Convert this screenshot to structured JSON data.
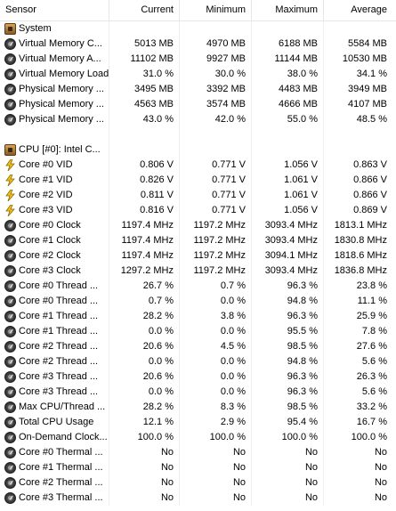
{
  "columns": {
    "sensor": "Sensor",
    "current": "Current",
    "minimum": "Minimum",
    "maximum": "Maximum",
    "average": "Average"
  },
  "system": {
    "group": "System",
    "rows": [
      {
        "name": "Virtual Memory C...",
        "icon": "gauge-icon",
        "cur": "5013 MB",
        "min": "4970 MB",
        "max": "6188 MB",
        "avg": "5584 MB"
      },
      {
        "name": "Virtual Memory A...",
        "icon": "gauge-icon",
        "cur": "11102 MB",
        "min": "9927 MB",
        "max": "11144 MB",
        "avg": "10530 MB"
      },
      {
        "name": "Virtual Memory Load",
        "icon": "gauge-icon",
        "cur": "31.0 %",
        "min": "30.0 %",
        "max": "38.0 %",
        "avg": "34.1 %"
      },
      {
        "name": "Physical Memory ...",
        "icon": "gauge-icon",
        "cur": "3495 MB",
        "min": "3392 MB",
        "max": "4483 MB",
        "avg": "3949 MB"
      },
      {
        "name": "Physical Memory ...",
        "icon": "gauge-icon",
        "cur": "4563 MB",
        "min": "3574 MB",
        "max": "4666 MB",
        "avg": "4107 MB"
      },
      {
        "name": "Physical Memory ...",
        "icon": "gauge-icon",
        "cur": "43.0 %",
        "min": "42.0 %",
        "max": "55.0 %",
        "avg": "48.5 %"
      }
    ]
  },
  "cpu": {
    "group": "CPU [#0]: Intel C...",
    "rows": [
      {
        "name": "Core #0 VID",
        "icon": "bolt-icon",
        "cur": "0.806 V",
        "min": "0.771 V",
        "max": "1.056 V",
        "avg": "0.863 V"
      },
      {
        "name": "Core #1 VID",
        "icon": "bolt-icon",
        "cur": "0.826 V",
        "min": "0.771 V",
        "max": "1.061 V",
        "avg": "0.866 V"
      },
      {
        "name": "Core #2 VID",
        "icon": "bolt-icon",
        "cur": "0.811 V",
        "min": "0.771 V",
        "max": "1.061 V",
        "avg": "0.866 V"
      },
      {
        "name": "Core #3 VID",
        "icon": "bolt-icon",
        "cur": "0.816 V",
        "min": "0.771 V",
        "max": "1.056 V",
        "avg": "0.869 V"
      },
      {
        "name": "Core #0 Clock",
        "icon": "gauge-icon",
        "cur": "1197.4 MHz",
        "min": "1197.2 MHz",
        "max": "3093.4 MHz",
        "avg": "1813.1 MHz"
      },
      {
        "name": "Core #1 Clock",
        "icon": "gauge-icon",
        "cur": "1197.4 MHz",
        "min": "1197.2 MHz",
        "max": "3093.4 MHz",
        "avg": "1830.8 MHz"
      },
      {
        "name": "Core #2 Clock",
        "icon": "gauge-icon",
        "cur": "1197.4 MHz",
        "min": "1197.2 MHz",
        "max": "3094.1 MHz",
        "avg": "1818.6 MHz"
      },
      {
        "name": "Core #3 Clock",
        "icon": "gauge-icon",
        "cur": "1297.2 MHz",
        "min": "1197.2 MHz",
        "max": "3093.4 MHz",
        "avg": "1836.8 MHz"
      },
      {
        "name": "Core #0 Thread ...",
        "icon": "gauge-icon",
        "cur": "26.7 %",
        "min": "0.7 %",
        "max": "96.3 %",
        "avg": "23.8 %"
      },
      {
        "name": "Core #0 Thread ...",
        "icon": "gauge-icon",
        "cur": "0.7 %",
        "min": "0.0 %",
        "max": "94.8 %",
        "avg": "11.1 %"
      },
      {
        "name": "Core #1 Thread ...",
        "icon": "gauge-icon",
        "cur": "28.2 %",
        "min": "3.8 %",
        "max": "96.3 %",
        "avg": "25.9 %"
      },
      {
        "name": "Core #1 Thread ...",
        "icon": "gauge-icon",
        "cur": "0.0 %",
        "min": "0.0 %",
        "max": "95.5 %",
        "avg": "7.8 %"
      },
      {
        "name": "Core #2 Thread ...",
        "icon": "gauge-icon",
        "cur": "20.6 %",
        "min": "4.5 %",
        "max": "98.5 %",
        "avg": "27.6 %"
      },
      {
        "name": "Core #2 Thread ...",
        "icon": "gauge-icon",
        "cur": "0.0 %",
        "min": "0.0 %",
        "max": "94.8 %",
        "avg": "5.6 %"
      },
      {
        "name": "Core #3 Thread ...",
        "icon": "gauge-icon",
        "cur": "20.6 %",
        "min": "0.0 %",
        "max": "96.3 %",
        "avg": "26.3 %"
      },
      {
        "name": "Core #3 Thread ...",
        "icon": "gauge-icon",
        "cur": "0.0 %",
        "min": "0.0 %",
        "max": "96.3 %",
        "avg": "5.6 %"
      },
      {
        "name": "Max CPU/Thread ...",
        "icon": "gauge-icon",
        "cur": "28.2 %",
        "min": "8.3 %",
        "max": "98.5 %",
        "avg": "33.2 %"
      },
      {
        "name": "Total CPU Usage",
        "icon": "gauge-icon",
        "cur": "12.1 %",
        "min": "2.9 %",
        "max": "95.4 %",
        "avg": "16.7 %"
      },
      {
        "name": "On-Demand Clock...",
        "icon": "gauge-icon",
        "cur": "100.0 %",
        "min": "100.0 %",
        "max": "100.0 %",
        "avg": "100.0 %"
      },
      {
        "name": "Core #0 Thermal ...",
        "icon": "gauge-icon",
        "cur": "No",
        "min": "No",
        "max": "No",
        "avg": "No"
      },
      {
        "name": "Core #1 Thermal ...",
        "icon": "gauge-icon",
        "cur": "No",
        "min": "No",
        "max": "No",
        "avg": "No"
      },
      {
        "name": "Core #2 Thermal ...",
        "icon": "gauge-icon",
        "cur": "No",
        "min": "No",
        "max": "No",
        "avg": "No"
      },
      {
        "name": "Core #3 Thermal ...",
        "icon": "gauge-icon",
        "cur": "No",
        "min": "No",
        "max": "No",
        "avg": "No"
      }
    ]
  }
}
